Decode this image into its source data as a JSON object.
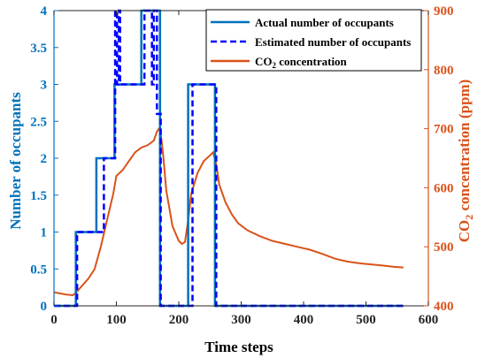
{
  "chart_data": {
    "type": "line",
    "xlabel": "Time steps",
    "ylabel_left": "Number of occupants",
    "ylabel_right": "CO",
    "ylabel_right_sub": "2",
    "ylabel_right_tail": " concentration (ppm)",
    "xlim": [
      0,
      600
    ],
    "ylim_left": [
      0,
      4
    ],
    "ylim_right": [
      400,
      900
    ],
    "xticks": [
      "0",
      "100",
      "200",
      "300",
      "400",
      "500",
      "600"
    ],
    "yticks_left": [
      "0",
      "0.5",
      "1",
      "1.5",
      "2",
      "2.5",
      "3",
      "3.5",
      "4"
    ],
    "yticks_right": [
      "400",
      "500",
      "600",
      "700",
      "800",
      "900"
    ],
    "grid": false,
    "legend_position": "top-right",
    "colors": {
      "actual": "#0072BD",
      "estimated": "#0000FF",
      "co2": "#D95319"
    },
    "series": [
      {
        "name": "Actual number of occupants",
        "key": "actual",
        "axis": "left",
        "style": "solid",
        "x": [
          0,
          35,
          35,
          68,
          68,
          97,
          97,
          140,
          140,
          170,
          170,
          215,
          215,
          258,
          258,
          560
        ],
        "y": [
          0,
          0,
          1,
          1,
          2,
          2,
          3,
          3,
          4,
          4,
          0,
          0,
          3,
          3,
          0,
          0
        ]
      },
      {
        "name": "Estimated number of occupants",
        "key": "estimated",
        "axis": "left",
        "style": "dashed",
        "x": [
          0,
          37,
          37,
          80,
          80,
          98,
          98,
          101,
          101,
          104,
          104,
          106,
          106,
          145,
          145,
          157,
          157,
          160,
          160,
          165,
          165,
          171,
          171,
          222,
          222,
          260,
          260,
          560
        ],
        "y": [
          0,
          0,
          1,
          1,
          2,
          2,
          4,
          4,
          3,
          3,
          4,
          4,
          3,
          3,
          4,
          4,
          3,
          3,
          4,
          4,
          2.6,
          2.6,
          0,
          0,
          3,
          3,
          0,
          0
        ]
      },
      {
        "name": "CO2 concentration",
        "legend_label": "CO",
        "legend_sub": "2",
        "legend_tail": " concentration",
        "key": "co2",
        "axis": "right",
        "style": "solid",
        "x": [
          0,
          10,
          20,
          30,
          35,
          45,
          55,
          65,
          75,
          85,
          95,
          100,
          110,
          120,
          130,
          140,
          150,
          160,
          165,
          170,
          175,
          180,
          190,
          200,
          205,
          210,
          215,
          220,
          230,
          240,
          250,
          255,
          260,
          265,
          275,
          285,
          295,
          310,
          330,
          350,
          370,
          390,
          410,
          430,
          450,
          470,
          490,
          510,
          530,
          545,
          560
        ],
        "y": [
          423,
          421,
          419,
          418,
          422,
          434,
          446,
          462,
          500,
          545,
          590,
          620,
          630,
          645,
          660,
          668,
          672,
          680,
          695,
          703,
          655,
          595,
          535,
          510,
          505,
          508,
          545,
          590,
          625,
          645,
          655,
          660,
          640,
          605,
          575,
          555,
          540,
          528,
          518,
          510,
          505,
          500,
          495,
          488,
          480,
          475,
          472,
          470,
          468,
          466,
          465
        ]
      }
    ]
  }
}
